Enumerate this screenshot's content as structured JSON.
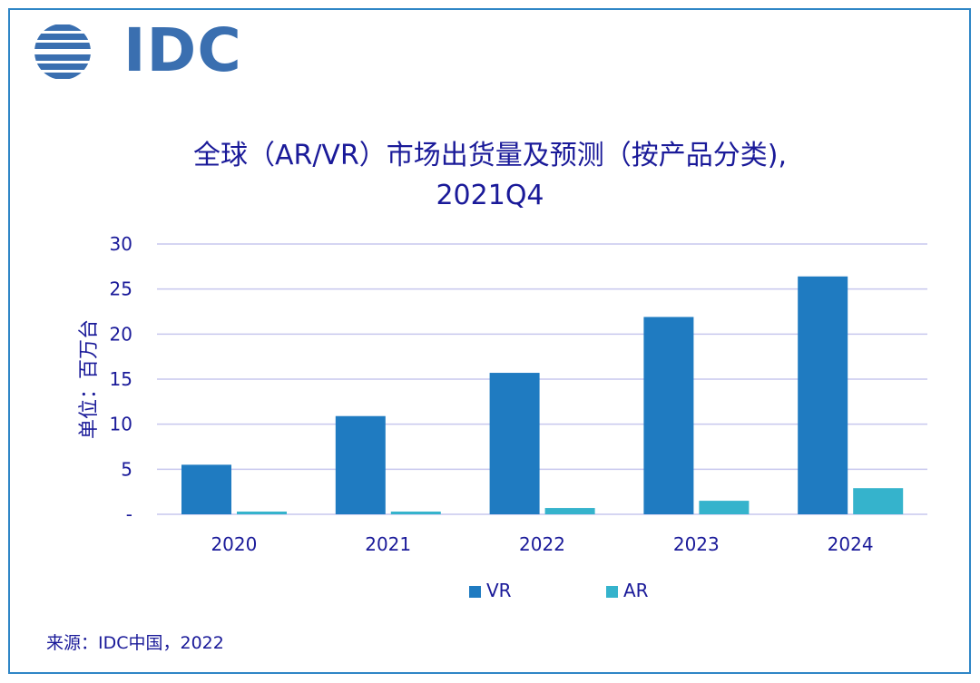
{
  "logo": {
    "text": "IDC"
  },
  "title_line1": "全球（AR/VR）市场出货量及预测（按产品分类),",
  "title_line2": "2021Q4",
  "source": "来源：IDC中国，2022",
  "colors": {
    "VR": "#1f7bc1",
    "AR": "#35b3cc",
    "text": "#1a1a99",
    "grid": "#c7c7ee",
    "border": "#2f86c6"
  },
  "chart_data": {
    "type": "bar",
    "categories": [
      "2020",
      "2021",
      "2022",
      "2023",
      "2024"
    ],
    "series": [
      {
        "name": "VR",
        "values": [
          5.5,
          10.9,
          15.7,
          21.9,
          26.4
        ]
      },
      {
        "name": "AR",
        "values": [
          0.3,
          0.3,
          0.7,
          1.5,
          2.9
        ]
      }
    ],
    "ylabel": "单位：百万台",
    "ylim": [
      0,
      30
    ],
    "yticks": [
      0,
      5,
      10,
      15,
      20,
      25,
      30
    ],
    "ytick_labels": [
      "-",
      "5",
      "10",
      "15",
      "20",
      "25",
      "30"
    ],
    "grid": true,
    "legend_position": "bottom"
  }
}
